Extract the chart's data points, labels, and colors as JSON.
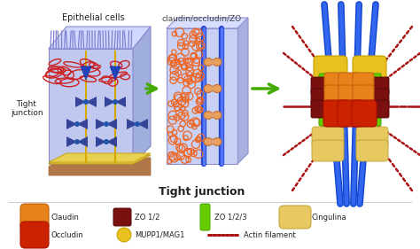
{
  "bg": "#ffffff",
  "panel1": {
    "face_color": "#c0c8f0",
    "top_color": "#d8e0ff",
    "right_color": "#a0b0e0",
    "floor_color": "#c8a060",
    "floor_base_color": "#b08050",
    "cell_line_color": "#d4aa00",
    "cilia_color": "#9090e0",
    "tj_color": "#dd3333",
    "junction_color": "#223388",
    "label_epithelial": "Epithelial cells",
    "label_tight1": "Tight",
    "label_tight2": "junction"
  },
  "panel2": {
    "bg_color": "#d0d8f8",
    "membrane_color": "#2244cc",
    "junction_color": "#e8a060",
    "dot_color": "#ee7722",
    "label": "claudin/occludin/ZO",
    "label2": "Tight junction"
  },
  "panel3": {
    "membrane_color": "#2255cc",
    "membrane_highlight": "#4488ff",
    "claudin_color": "#e8821a",
    "occludin_color": "#cc2200",
    "zo12_color": "#7a1010",
    "zo123_color": "#66cc00",
    "cingulina_color": "#e8c860",
    "mupp1_color": "#e8c020",
    "actin_color": "#aa1111"
  },
  "arrows": {
    "color": "#44aa00"
  },
  "legend": {
    "claudin_color": "#e8821a",
    "zo12_color": "#7a1010",
    "zo123_color": "#66cc00",
    "cingulina_color": "#e8c860",
    "occludin_color": "#cc2200",
    "mupp1_color": "#e8c020",
    "actin_color": "#aa1111"
  }
}
